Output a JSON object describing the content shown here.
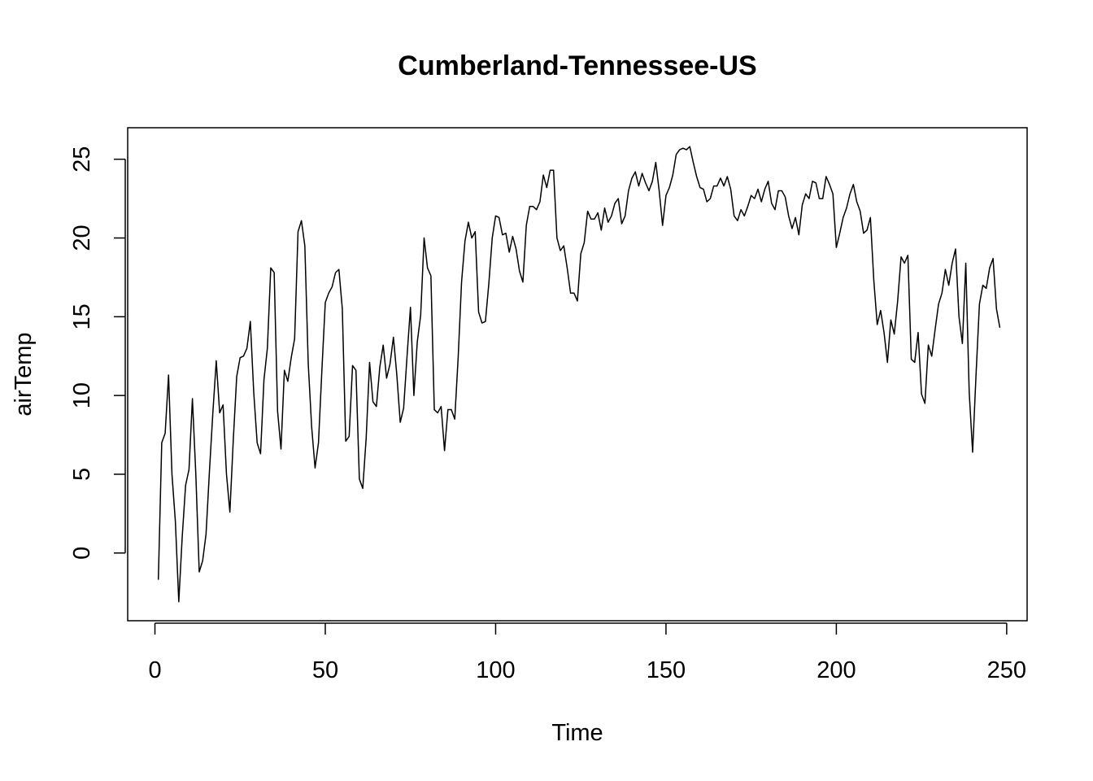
{
  "chart_data": {
    "type": "line",
    "title": "Cumberland-Tennessee-US",
    "xlabel": "Time",
    "ylabel": "airTemp",
    "xlim": [
      -8,
      256
    ],
    "ylim": [
      -4.3,
      27
    ],
    "x_ticks": [
      0,
      50,
      100,
      150,
      200,
      250
    ],
    "y_ticks": [
      0,
      5,
      10,
      15,
      20,
      25
    ],
    "x_tick_labels": [
      "0",
      "50",
      "100",
      "150",
      "200",
      "250"
    ],
    "y_tick_labels": [
      "0",
      "5",
      "10",
      "15",
      "20",
      "25"
    ],
    "grid": false,
    "legend": "none",
    "line_color": "#000000",
    "x_start": 1,
    "x_step": 1,
    "series": [
      {
        "values": [
          -1.7,
          7.0,
          7.6,
          11.3,
          5.0,
          2.0,
          -3.1,
          1.0,
          4.3,
          5.3,
          9.8,
          5.0,
          -1.2,
          -0.5,
          1.2,
          5.2,
          8.9,
          12.2,
          8.9,
          9.4,
          5.0,
          2.6,
          7.2,
          11.2,
          12.4,
          12.5,
          13.0,
          14.7,
          10.2,
          7.0,
          6.3,
          11.0,
          13.0,
          18.1,
          17.8,
          9.0,
          6.6,
          11.6,
          10.9,
          12.4,
          13.6,
          20.4,
          21.1,
          19.5,
          12.0,
          8.0,
          5.4,
          7.0,
          11.6,
          15.9,
          16.5,
          16.9,
          17.8,
          18.0,
          15.5,
          7.1,
          7.4,
          11.9,
          11.6,
          4.7,
          4.1,
          7.3,
          12.1,
          9.6,
          9.3,
          11.8,
          13.2,
          11.1,
          12.0,
          13.7,
          11.3,
          8.3,
          9.2,
          12.5,
          15.6,
          10.0,
          13.4,
          15.1,
          20.0,
          18.1,
          17.6,
          9.1,
          8.9,
          9.3,
          6.5,
          9.1,
          9.1,
          8.5,
          12.4,
          17.2,
          19.8,
          21.0,
          20.0,
          20.4,
          15.3,
          14.6,
          14.7,
          17.1,
          20.0,
          21.4,
          21.3,
          20.2,
          20.3,
          19.1,
          20.1,
          19.3,
          17.9,
          17.2,
          20.8,
          22.0,
          22.0,
          21.8,
          22.3,
          24.0,
          23.2,
          24.3,
          24.3,
          20.0,
          19.2,
          19.5,
          18.1,
          16.5,
          16.5,
          16.0,
          19.0,
          19.7,
          21.7,
          21.2,
          21.2,
          21.6,
          20.5,
          21.9,
          21.0,
          21.4,
          22.2,
          22.5,
          20.9,
          21.4,
          23.0,
          23.8,
          24.2,
          23.3,
          24.1,
          23.5,
          23.0,
          23.6,
          24.8,
          23.0,
          20.8,
          22.7,
          23.2,
          24.0,
          25.3,
          25.6,
          25.7,
          25.6,
          25.8,
          24.8,
          23.9,
          23.2,
          23.1,
          22.3,
          22.5,
          23.3,
          23.3,
          23.8,
          23.3,
          23.9,
          23.1,
          21.4,
          21.1,
          21.8,
          21.4,
          22.0,
          22.7,
          22.5,
          23.1,
          22.3,
          23.1,
          23.6,
          22.2,
          21.8,
          23.0,
          23.0,
          22.6,
          21.4,
          20.6,
          21.3,
          20.2,
          22.1,
          22.8,
          22.5,
          23.6,
          23.5,
          22.5,
          22.5,
          23.9,
          23.4,
          22.8,
          19.4,
          20.3,
          21.3,
          21.9,
          22.8,
          23.4,
          22.3,
          21.7,
          20.3,
          20.5,
          21.3,
          17.3,
          14.5,
          15.4,
          14.0,
          12.1,
          14.8,
          13.9,
          16.0,
          18.8,
          18.4,
          18.9,
          12.3,
          12.1,
          14.0,
          10.1,
          9.5,
          13.2,
          12.5,
          14.2,
          15.8,
          16.5,
          18.0,
          17.0,
          18.4,
          19.3,
          15.0,
          13.3,
          18.4,
          10.2,
          6.4,
          11.3,
          15.8,
          17.0,
          16.8,
          18.1,
          18.7,
          15.5,
          14.3
        ]
      }
    ]
  }
}
